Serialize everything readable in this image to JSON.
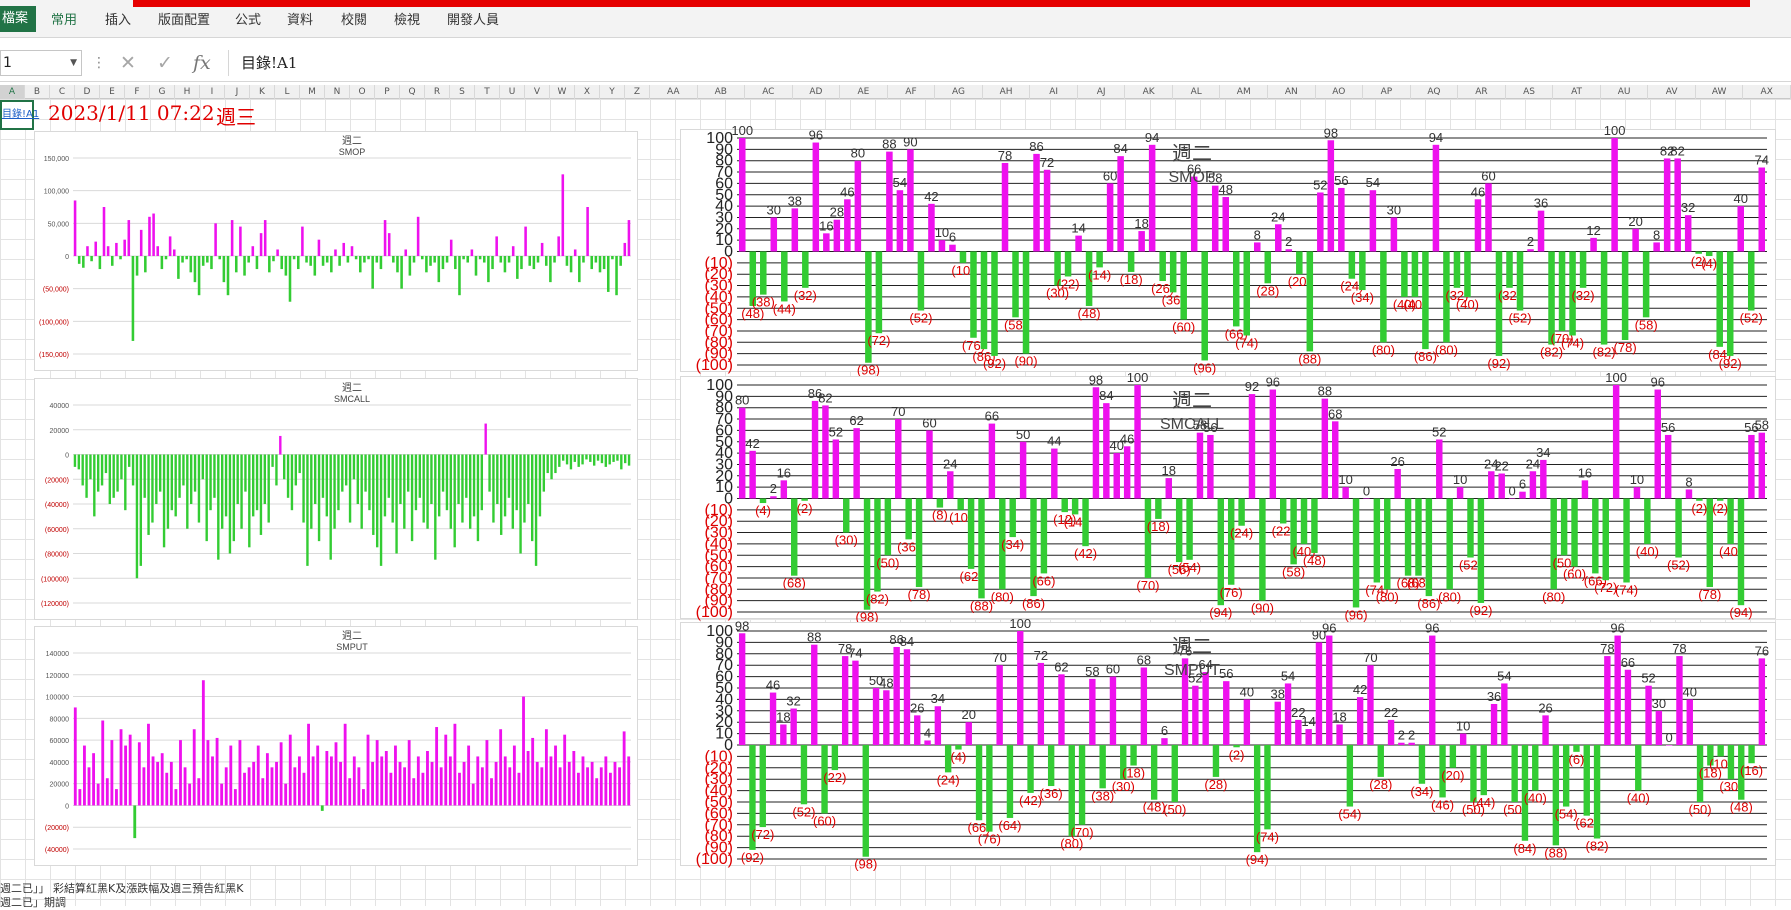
{
  "ribbon": {
    "tabs": [
      "檔案",
      "常用",
      "插入",
      "版面配置",
      "公式",
      "資料",
      "校閱",
      "檢視",
      "開發人員"
    ]
  },
  "formula_bar": {
    "name_box": "1",
    "formula": "目錄!A1",
    "icons": [
      "cancel-icon",
      "enter-icon",
      "function-icon"
    ]
  },
  "column_headers": [
    "A",
    "B",
    "C",
    "D",
    "E",
    "F",
    "G",
    "H",
    "I",
    "J",
    "K",
    "L",
    "M",
    "N",
    "O",
    "P",
    "Q",
    "R",
    "S",
    "T",
    "U",
    "V",
    "W",
    "X",
    "Y",
    "Z",
    "AA",
    "AB",
    "AC",
    "AD",
    "AE",
    "AF",
    "AG",
    "AH",
    "AI",
    "AJ",
    "AK",
    "AL",
    "AM",
    "AN",
    "AO",
    "AP",
    "AQ",
    "AR",
    "AS",
    "AT",
    "AU",
    "AV",
    "AW",
    "AX"
  ],
  "sheet": {
    "a1_link": "目錄!A1",
    "date_time": "2023/1/11 07:22",
    "weekday": "週三"
  },
  "notes": [
    "週二已」」 彩結算紅黑K及漲跌幅及週三預告紅黑K",
    "週二已」期調"
  ],
  "colors": {
    "positive": "#ee11ee",
    "negative": "#33cc33",
    "negative_label": "#dd0000",
    "excel_green": "#217346",
    "red_bar": "#e60000"
  },
  "chart_data": [
    {
      "id": "smop-left",
      "type": "bar",
      "title": "週二",
      "subtitle": "SMOP",
      "ylim": [
        -150000,
        150000
      ],
      "y_ticks": [
        "150,000",
        "100,000",
        "50,000",
        "0",
        "(50,000)",
        "(100,000)",
        "(150,000)"
      ],
      "values": [
        85000,
        -12000,
        -18000,
        15000,
        -8000,
        22000,
        -20000,
        75000,
        15000,
        -15000,
        20000,
        -5000,
        25000,
        55000,
        -130000,
        -30000,
        40000,
        -25000,
        60000,
        65000,
        15000,
        -20000,
        -5000,
        30000,
        10000,
        -35000,
        -10000,
        -5000,
        -25000,
        -40000,
        -60000,
        -15000,
        -10000,
        -20000,
        50000,
        -5000,
        -40000,
        -60000,
        55000,
        -25000,
        45000,
        -30000,
        -10000,
        15000,
        -20000,
        35000,
        55000,
        -25000,
        -8000,
        10000,
        -20000,
        -30000,
        -70000,
        -5000,
        -20000,
        45000,
        -10000,
        -15000,
        -30000,
        25000,
        -15000,
        -10000,
        -25000,
        10000,
        -15000,
        20000,
        -10000,
        15000,
        -5000,
        -25000,
        -10000,
        -5000,
        -50000,
        -10000,
        -20000,
        55000,
        35000,
        -10000,
        -25000,
        -50000,
        10000,
        -30000,
        -10000,
        60000,
        -5000,
        -25000,
        -15000,
        -10000,
        -40000,
        -20000,
        -10000,
        25000,
        -20000,
        -60000,
        -5000,
        -10000,
        10000,
        -30000,
        -5000,
        -10000,
        -40000,
        -20000,
        30000,
        -10000,
        -25000,
        -10000,
        15000,
        -35000,
        -20000,
        45000,
        -15000,
        -20000,
        -10000,
        20000,
        -15000,
        -40000,
        -10000,
        30000,
        125000,
        -15000,
        -25000,
        10000,
        -40000,
        -10000,
        75000,
        -20000,
        -10000,
        -25000,
        -20000,
        -55000,
        -5000,
        -60000,
        -15000,
        20000,
        55000
      ]
    },
    {
      "id": "smcall-left",
      "type": "bar",
      "title": "週二",
      "subtitle": "SMCALL",
      "ylim": [
        -120000,
        40000
      ],
      "y_ticks": [
        "40000",
        "20000",
        "0",
        "(20000)",
        "(40000)",
        "(60000)",
        "(80000)",
        "(100000)",
        "(120000)"
      ],
      "values": [
        -10000,
        -12000,
        -25000,
        -35000,
        -20000,
        -50000,
        -30000,
        -25000,
        -15000,
        -40000,
        -35000,
        -30000,
        -20000,
        -45000,
        -10000,
        -25000,
        -100000,
        -90000,
        -35000,
        -65000,
        -55000,
        -40000,
        -30000,
        -75000,
        -60000,
        -45000,
        -50000,
        -35000,
        -25000,
        -60000,
        -40000,
        -30000,
        -55000,
        -20000,
        -70000,
        -45000,
        -35000,
        -85000,
        -60000,
        -50000,
        -80000,
        -70000,
        -40000,
        -60000,
        -30000,
        -75000,
        -50000,
        -45000,
        -65000,
        -40000,
        -55000,
        -10000,
        -25000,
        15000,
        -20000,
        -35000,
        -45000,
        -25000,
        -15000,
        -55000,
        -90000,
        -60000,
        -40000,
        -70000,
        -35000,
        -50000,
        -85000,
        -60000,
        -45000,
        -30000,
        -25000,
        -55000,
        -20000,
        -40000,
        -60000,
        -30000,
        -45000,
        -65000,
        -75000,
        -90000,
        -50000,
        -35000,
        -55000,
        -80000,
        -40000,
        -60000,
        -30000,
        -70000,
        -45000,
        -35000,
        -55000,
        -60000,
        -40000,
        -85000,
        -50000,
        -30000,
        -45000,
        -60000,
        -75000,
        -40000,
        -55000,
        -35000,
        -60000,
        -50000,
        -70000,
        -45000,
        25000,
        -30000,
        -55000,
        -40000,
        -65000,
        -50000,
        -35000,
        -60000,
        -45000,
        -80000,
        -55000,
        -40000,
        -70000,
        -90000,
        -50000,
        -30000,
        -15000,
        -20000,
        -15000,
        -10000,
        -5000,
        -8000,
        -12000,
        -6000,
        -10000,
        -8000,
        -4000,
        -6000,
        -9000,
        -5000,
        -7000,
        -10000,
        -8000,
        -6000,
        -5000,
        -12000,
        -7000,
        -9000
      ]
    },
    {
      "id": "smput-left",
      "type": "bar",
      "title": "週二",
      "subtitle": "SMPUT",
      "ylim": [
        -40000,
        140000
      ],
      "y_ticks": [
        "140000",
        "120000",
        "100000",
        "80000",
        "60000",
        "40000",
        "20000",
        "0",
        "(20000)",
        "(40000)"
      ],
      "values": [
        90000,
        15000,
        55000,
        35000,
        48000,
        20000,
        78000,
        25000,
        60000,
        15000,
        70000,
        55000,
        65000,
        -30000,
        58000,
        35000,
        75000,
        45000,
        40000,
        48000,
        30000,
        40000,
        15000,
        60000,
        35000,
        20000,
        70000,
        25000,
        115000,
        60000,
        45000,
        62000,
        20000,
        35000,
        55000,
        15000,
        60000,
        30000,
        35000,
        40000,
        55000,
        25000,
        48000,
        35000,
        40000,
        58000,
        20000,
        65000,
        35000,
        45000,
        30000,
        75000,
        45000,
        55000,
        -5000,
        50000,
        45000,
        58000,
        40000,
        75000,
        25000,
        45000,
        35000,
        15000,
        65000,
        40000,
        60000,
        45000,
        50000,
        30000,
        55000,
        40000,
        35000,
        60000,
        25000,
        45000,
        30000,
        50000,
        40000,
        72000,
        35000,
        65000,
        45000,
        75000,
        30000,
        40000,
        55000,
        20000,
        45000,
        35000,
        60000,
        25000,
        40000,
        70000,
        45000,
        35000,
        55000,
        30000,
        100000,
        50000,
        62000,
        40000,
        35000,
        70000,
        45000,
        55000,
        35000,
        65000,
        40000,
        50000,
        30000,
        45000,
        35000,
        40000,
        25000,
        35000,
        45000,
        30000,
        40000,
        35000,
        68000,
        45000
      ]
    },
    {
      "id": "smop-right",
      "type": "bar",
      "title": "週二",
      "subtitle": "SMOP",
      "ylim": [
        -100,
        100
      ],
      "y_ticks": [
        "100",
        "90",
        "80",
        "70",
        "60",
        "50",
        "40",
        "30",
        "20",
        "10",
        "0",
        "(10)",
        "(20)",
        "(30)",
        "(40)",
        "(50)",
        "(60)",
        "(70)",
        "(80)",
        "(90)",
        "(100)"
      ],
      "values": [
        100,
        -48,
        -38,
        30,
        -44,
        38,
        -32,
        96,
        16,
        28,
        46,
        80,
        -98,
        -72,
        88,
        54,
        90,
        -52,
        42,
        10,
        6,
        -10,
        -76,
        -86,
        -92,
        78,
        -58,
        -90,
        86,
        72,
        -30,
        -22,
        14,
        -48,
        -14,
        60,
        84,
        -18,
        18,
        94,
        -26,
        -36,
        -60,
        66,
        -96,
        58,
        48,
        -66,
        -74,
        8,
        -28,
        24,
        2,
        -20,
        -88,
        52,
        98,
        56,
        -24,
        -34,
        54,
        -80,
        30,
        -40,
        -40,
        -86,
        94,
        -80,
        -32,
        -40,
        46,
        60,
        -92,
        -32,
        -52,
        2,
        36,
        -82,
        -70,
        -74,
        -32,
        12,
        -82,
        100,
        -78,
        20,
        -58,
        8,
        82,
        82,
        32,
        -2,
        -4,
        -84,
        -92,
        40,
        -52,
        74
      ]
    },
    {
      "id": "smcall-right",
      "type": "bar",
      "title": "週二",
      "subtitle": "SMCALL",
      "ylim": [
        -100,
        100
      ],
      "y_ticks": [
        "100",
        "90",
        "80",
        "70",
        "60",
        "50",
        "40",
        "30",
        "20",
        "10",
        "0",
        "(10)",
        "(20)",
        "(30)",
        "(40)",
        "(50)",
        "(60)",
        "(70)",
        "(80)",
        "(90)",
        "(100)"
      ],
      "values": [
        80,
        42,
        -4,
        2,
        16,
        -68,
        -2,
        86,
        82,
        52,
        -30,
        62,
        -98,
        -82,
        -50,
        70,
        -36,
        -78,
        60,
        -8,
        24,
        -10,
        -62,
        -88,
        66,
        -80,
        -34,
        50,
        -86,
        -66,
        44,
        -12,
        -14,
        -42,
        98,
        84,
        40,
        46,
        100,
        -70,
        -18,
        18,
        -56,
        -54,
        58,
        56,
        -94,
        -76,
        -24,
        92,
        -90,
        96,
        -22,
        -58,
        -40,
        -48,
        88,
        68,
        10,
        -96,
        0,
        -74,
        -80,
        26,
        -68,
        -68,
        -86,
        52,
        -80,
        10,
        -52,
        -92,
        24,
        22,
        0,
        6,
        24,
        34,
        -80,
        -50,
        -60,
        16,
        -66,
        -72,
        100,
        -74,
        10,
        -40,
        96,
        56,
        -52,
        8,
        -2,
        -78,
        -2,
        -40,
        -94,
        56,
        58
      ]
    },
    {
      "id": "smput-right",
      "type": "bar",
      "title": "週二",
      "subtitle": "SMPUT",
      "ylim": [
        -100,
        100
      ],
      "y_ticks": [
        "100",
        "90",
        "80",
        "70",
        "60",
        "50",
        "40",
        "30",
        "20",
        "10",
        "0",
        "(10)",
        "(20)",
        "(30)",
        "(40)",
        "(50)",
        "(60)",
        "(70)",
        "(80)",
        "(90)",
        "(100)"
      ],
      "values": [
        98,
        -92,
        -72,
        46,
        18,
        32,
        -52,
        88,
        -60,
        -22,
        78,
        74,
        -98,
        50,
        48,
        86,
        84,
        26,
        4,
        34,
        -24,
        -4,
        20,
        -66,
        -76,
        70,
        -64,
        100,
        -42,
        72,
        -36,
        62,
        -80,
        -70,
        58,
        -38,
        60,
        -30,
        -18,
        68,
        -48,
        6,
        -50,
        76,
        52,
        64,
        -28,
        56,
        -2,
        40,
        -94,
        -74,
        38,
        54,
        22,
        14,
        90,
        96,
        18,
        -54,
        42,
        70,
        -28,
        22,
        2,
        2,
        -34,
        96,
        -46,
        -20,
        10,
        -50,
        -44,
        36,
        54,
        -50,
        -84,
        -40,
        26,
        -88,
        -54,
        -6,
        -62,
        -82,
        78,
        96,
        66,
        -40,
        52,
        30,
        0,
        78,
        40,
        -50,
        -18,
        -10,
        -30,
        -48,
        -16,
        76
      ]
    }
  ]
}
